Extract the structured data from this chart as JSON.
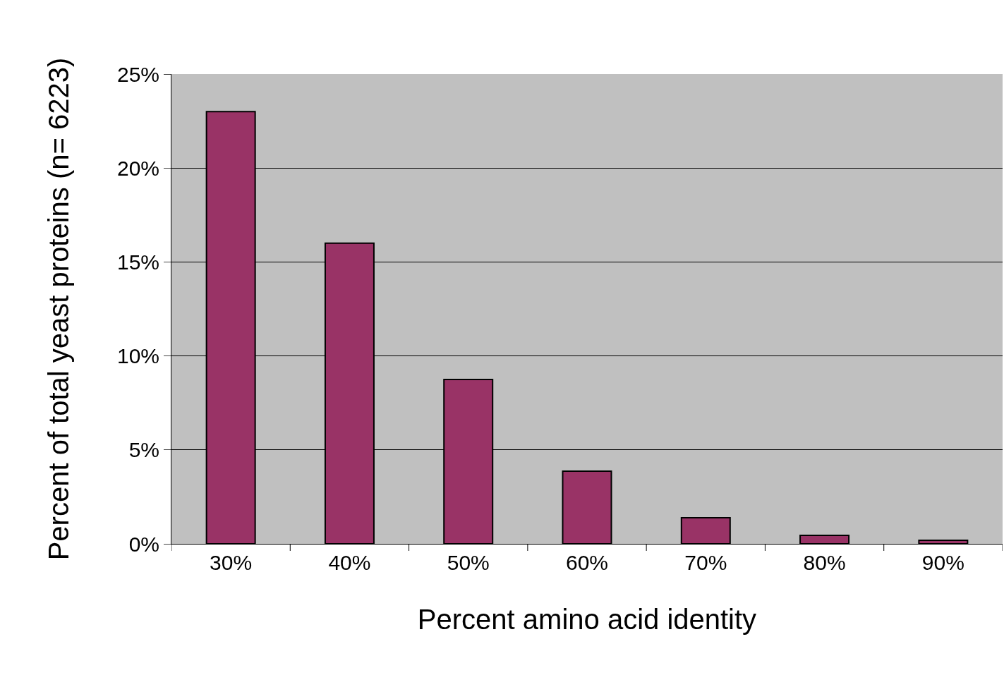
{
  "chart_data": {
    "type": "bar",
    "xlabel": "Percent amino acid identity",
    "ylabel": "Percent of total yeast proteins (n= 6223)",
    "categories": [
      "30%",
      "40%",
      "50%",
      "60%",
      "70%",
      "80%",
      "90%"
    ],
    "values": [
      23.0,
      16.0,
      8.75,
      3.87,
      1.39,
      0.45,
      0.19
    ],
    "color": "#993366",
    "ylim": [
      0,
      25
    ],
    "yticks": [
      {
        "value": 0,
        "label": "0%"
      },
      {
        "value": 5,
        "label": "5%"
      },
      {
        "value": 10,
        "label": "10%"
      },
      {
        "value": 15,
        "label": "15%"
      },
      {
        "value": 20,
        "label": "20%"
      },
      {
        "value": 25,
        "label": "25%"
      }
    ],
    "grid": "y"
  }
}
